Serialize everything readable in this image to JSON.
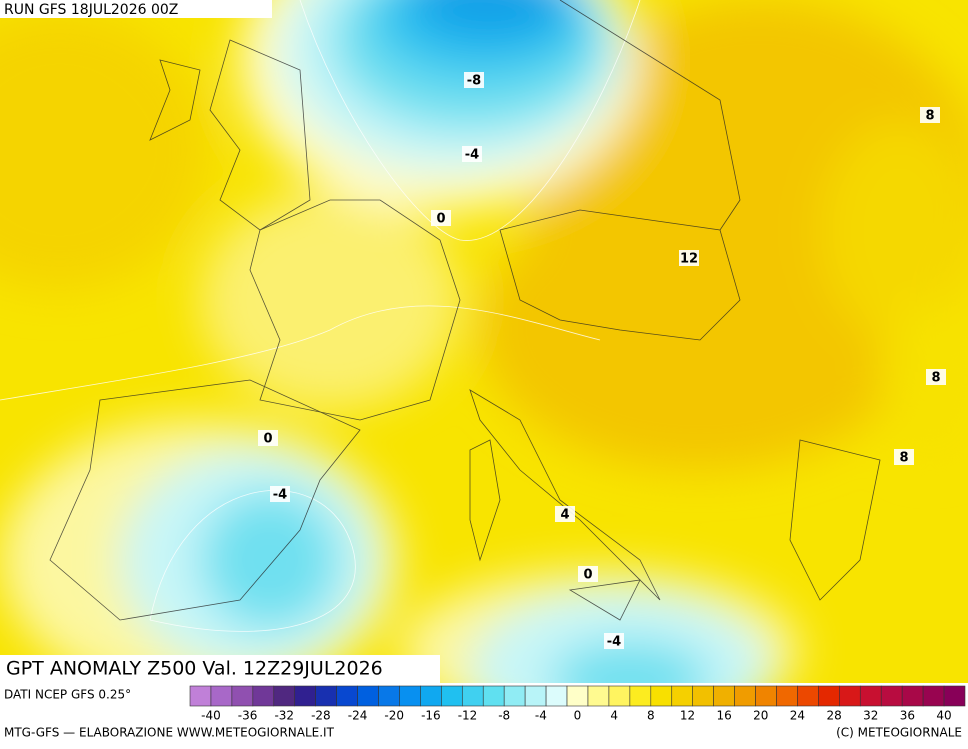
{
  "header": {
    "run": "RUN GFS 18JUL2026 00Z"
  },
  "title": "GPT ANOMALY Z500 Val. 12Z29JUL2026",
  "contour_labels": [
    -8,
    -4,
    0,
    12,
    8,
    8,
    8,
    0,
    -4,
    4,
    0,
    -4
  ],
  "colorbar": {
    "source": "DATI NCEP GFS 0.25°",
    "ticks": [
      -40,
      -36,
      -32,
      -28,
      -24,
      -20,
      -16,
      -12,
      -8,
      -4,
      0,
      4,
      8,
      12,
      16,
      20,
      24,
      28,
      32,
      36,
      40
    ],
    "colors": [
      "#c080d8",
      "#a868c8",
      "#9050b0",
      "#703898",
      "#502880",
      "#302090",
      "#1830b0",
      "#0848d0",
      "#0060e0",
      "#0878e8",
      "#0890f0",
      "#10a8f0",
      "#20c0f0",
      "#40d0f0",
      "#60e0f0",
      "#90ecf4",
      "#b8f4f8",
      "#dcfcfc",
      "#ffffc8",
      "#fffa90",
      "#fff460",
      "#fcec20",
      "#f8e000",
      "#f5d000",
      "#f2c000",
      "#f0b000",
      "#f09c00",
      "#f08400",
      "#f06800",
      "#ec4800",
      "#e42800",
      "#d81818",
      "#c81030",
      "#b80c40",
      "#a80848",
      "#980450",
      "#880058"
    ]
  },
  "footer": {
    "left": "MTG-GFS — ELABORAZIONE WWW.METEOGIORNALE.IT",
    "right": "(C) METEOGIORNALE"
  }
}
